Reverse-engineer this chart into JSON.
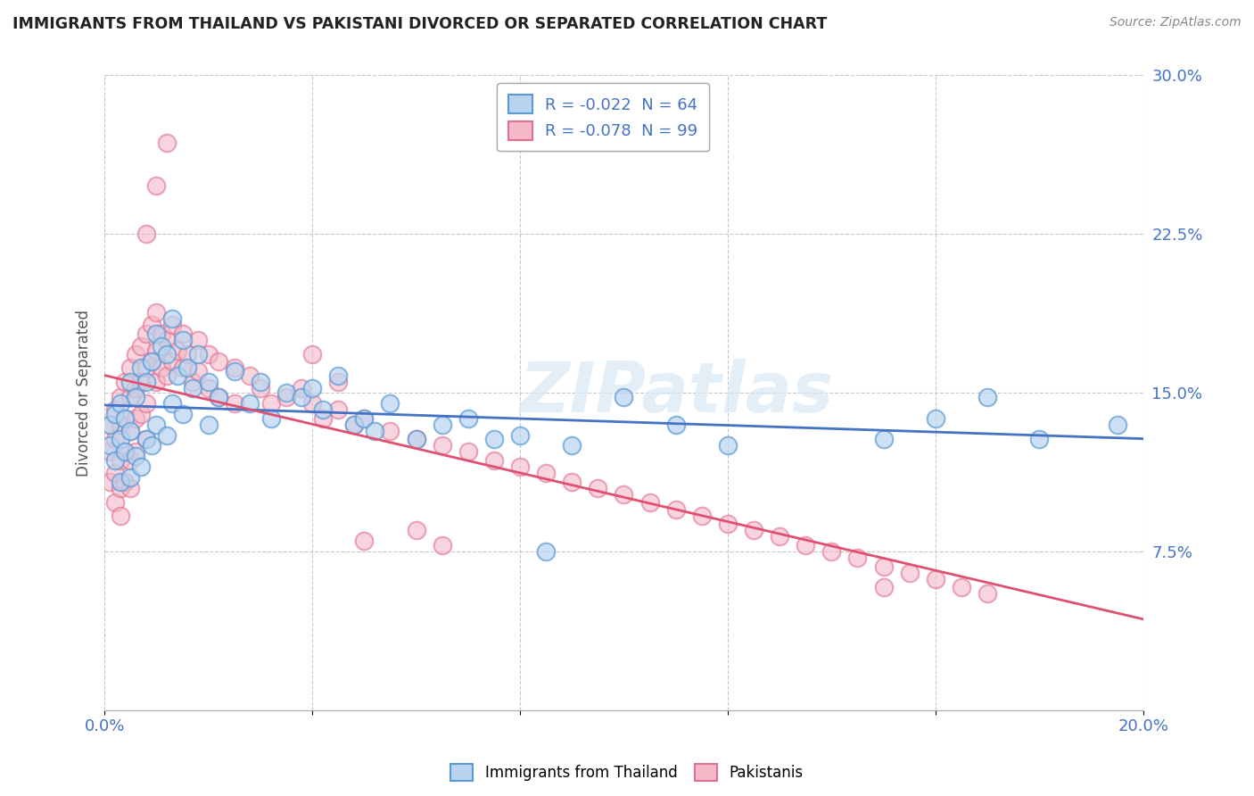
{
  "title": "IMMIGRANTS FROM THAILAND VS PAKISTANI DIVORCED OR SEPARATED CORRELATION CHART",
  "source": "Source: ZipAtlas.com",
  "ylabel": "Divorced or Separated",
  "xlabel": "",
  "xlim": [
    0.0,
    0.2
  ],
  "ylim": [
    0.0,
    0.3
  ],
  "xticks": [
    0.0,
    0.04,
    0.08,
    0.12,
    0.16,
    0.2
  ],
  "yticks": [
    0.0,
    0.075,
    0.15,
    0.225,
    0.3
  ],
  "background_color": "#ffffff",
  "grid_color": "#c8c8c8",
  "watermark": "ZIPatlas",
  "series1_name": "Immigrants from Thailand",
  "series1_color": "#b8d4f0",
  "series1_edge_color": "#5b9bd5",
  "series1_R": -0.022,
  "series1_N": 64,
  "series1_line_color": "#4472c4",
  "series2_name": "Pakistanis",
  "series2_color": "#f4b8c8",
  "series2_edge_color": "#e07090",
  "series2_R": -0.078,
  "series2_N": 99,
  "series2_line_color": "#e05070",
  "series1_x": [
    0.001,
    0.001,
    0.002,
    0.002,
    0.003,
    0.003,
    0.003,
    0.004,
    0.004,
    0.005,
    0.005,
    0.005,
    0.006,
    0.006,
    0.007,
    0.007,
    0.008,
    0.008,
    0.009,
    0.009,
    0.01,
    0.01,
    0.011,
    0.012,
    0.012,
    0.013,
    0.013,
    0.014,
    0.015,
    0.015,
    0.016,
    0.017,
    0.018,
    0.02,
    0.02,
    0.022,
    0.025,
    0.028,
    0.03,
    0.032,
    0.035,
    0.038,
    0.04,
    0.042,
    0.045,
    0.048,
    0.05,
    0.052,
    0.055,
    0.06,
    0.065,
    0.07,
    0.075,
    0.08,
    0.085,
    0.09,
    0.1,
    0.11,
    0.12,
    0.15,
    0.16,
    0.17,
    0.18,
    0.195
  ],
  "series1_y": [
    0.135,
    0.125,
    0.14,
    0.118,
    0.145,
    0.128,
    0.108,
    0.138,
    0.122,
    0.155,
    0.132,
    0.11,
    0.148,
    0.12,
    0.162,
    0.115,
    0.155,
    0.128,
    0.165,
    0.125,
    0.178,
    0.135,
    0.172,
    0.168,
    0.13,
    0.185,
    0.145,
    0.158,
    0.175,
    0.14,
    0.162,
    0.152,
    0.168,
    0.155,
    0.135,
    0.148,
    0.16,
    0.145,
    0.155,
    0.138,
    0.15,
    0.148,
    0.152,
    0.142,
    0.158,
    0.135,
    0.138,
    0.132,
    0.145,
    0.128,
    0.135,
    0.138,
    0.128,
    0.13,
    0.075,
    0.125,
    0.148,
    0.135,
    0.125,
    0.128,
    0.138,
    0.148,
    0.128,
    0.135
  ],
  "series2_x": [
    0.001,
    0.001,
    0.001,
    0.002,
    0.002,
    0.002,
    0.002,
    0.003,
    0.003,
    0.003,
    0.003,
    0.003,
    0.004,
    0.004,
    0.004,
    0.004,
    0.005,
    0.005,
    0.005,
    0.005,
    0.005,
    0.006,
    0.006,
    0.006,
    0.006,
    0.007,
    0.007,
    0.007,
    0.008,
    0.008,
    0.008,
    0.008,
    0.009,
    0.009,
    0.01,
    0.01,
    0.01,
    0.011,
    0.011,
    0.012,
    0.012,
    0.013,
    0.013,
    0.014,
    0.015,
    0.015,
    0.016,
    0.017,
    0.018,
    0.018,
    0.02,
    0.02,
    0.022,
    0.022,
    0.025,
    0.025,
    0.028,
    0.03,
    0.032,
    0.035,
    0.038,
    0.04,
    0.042,
    0.045,
    0.048,
    0.05,
    0.055,
    0.06,
    0.065,
    0.07,
    0.075,
    0.08,
    0.085,
    0.09,
    0.095,
    0.1,
    0.105,
    0.11,
    0.115,
    0.12,
    0.125,
    0.13,
    0.135,
    0.14,
    0.145,
    0.15,
    0.155,
    0.16,
    0.165,
    0.17,
    0.008,
    0.01,
    0.012,
    0.04,
    0.045,
    0.05,
    0.06,
    0.065,
    0.15
  ],
  "series2_y": [
    0.135,
    0.122,
    0.108,
    0.142,
    0.128,
    0.112,
    0.098,
    0.148,
    0.135,
    0.118,
    0.105,
    0.092,
    0.155,
    0.138,
    0.122,
    0.108,
    0.162,
    0.148,
    0.132,
    0.118,
    0.105,
    0.168,
    0.152,
    0.138,
    0.122,
    0.172,
    0.155,
    0.14,
    0.178,
    0.162,
    0.145,
    0.128,
    0.182,
    0.165,
    0.188,
    0.17,
    0.155,
    0.178,
    0.162,
    0.175,
    0.158,
    0.182,
    0.165,
    0.17,
    0.178,
    0.162,
    0.168,
    0.155,
    0.175,
    0.16,
    0.168,
    0.152,
    0.165,
    0.148,
    0.162,
    0.145,
    0.158,
    0.152,
    0.145,
    0.148,
    0.152,
    0.145,
    0.138,
    0.142,
    0.135,
    0.138,
    0.132,
    0.128,
    0.125,
    0.122,
    0.118,
    0.115,
    0.112,
    0.108,
    0.105,
    0.102,
    0.098,
    0.095,
    0.092,
    0.088,
    0.085,
    0.082,
    0.078,
    0.075,
    0.072,
    0.068,
    0.065,
    0.062,
    0.058,
    0.055,
    0.225,
    0.248,
    0.268,
    0.168,
    0.155,
    0.08,
    0.085,
    0.078,
    0.058
  ]
}
